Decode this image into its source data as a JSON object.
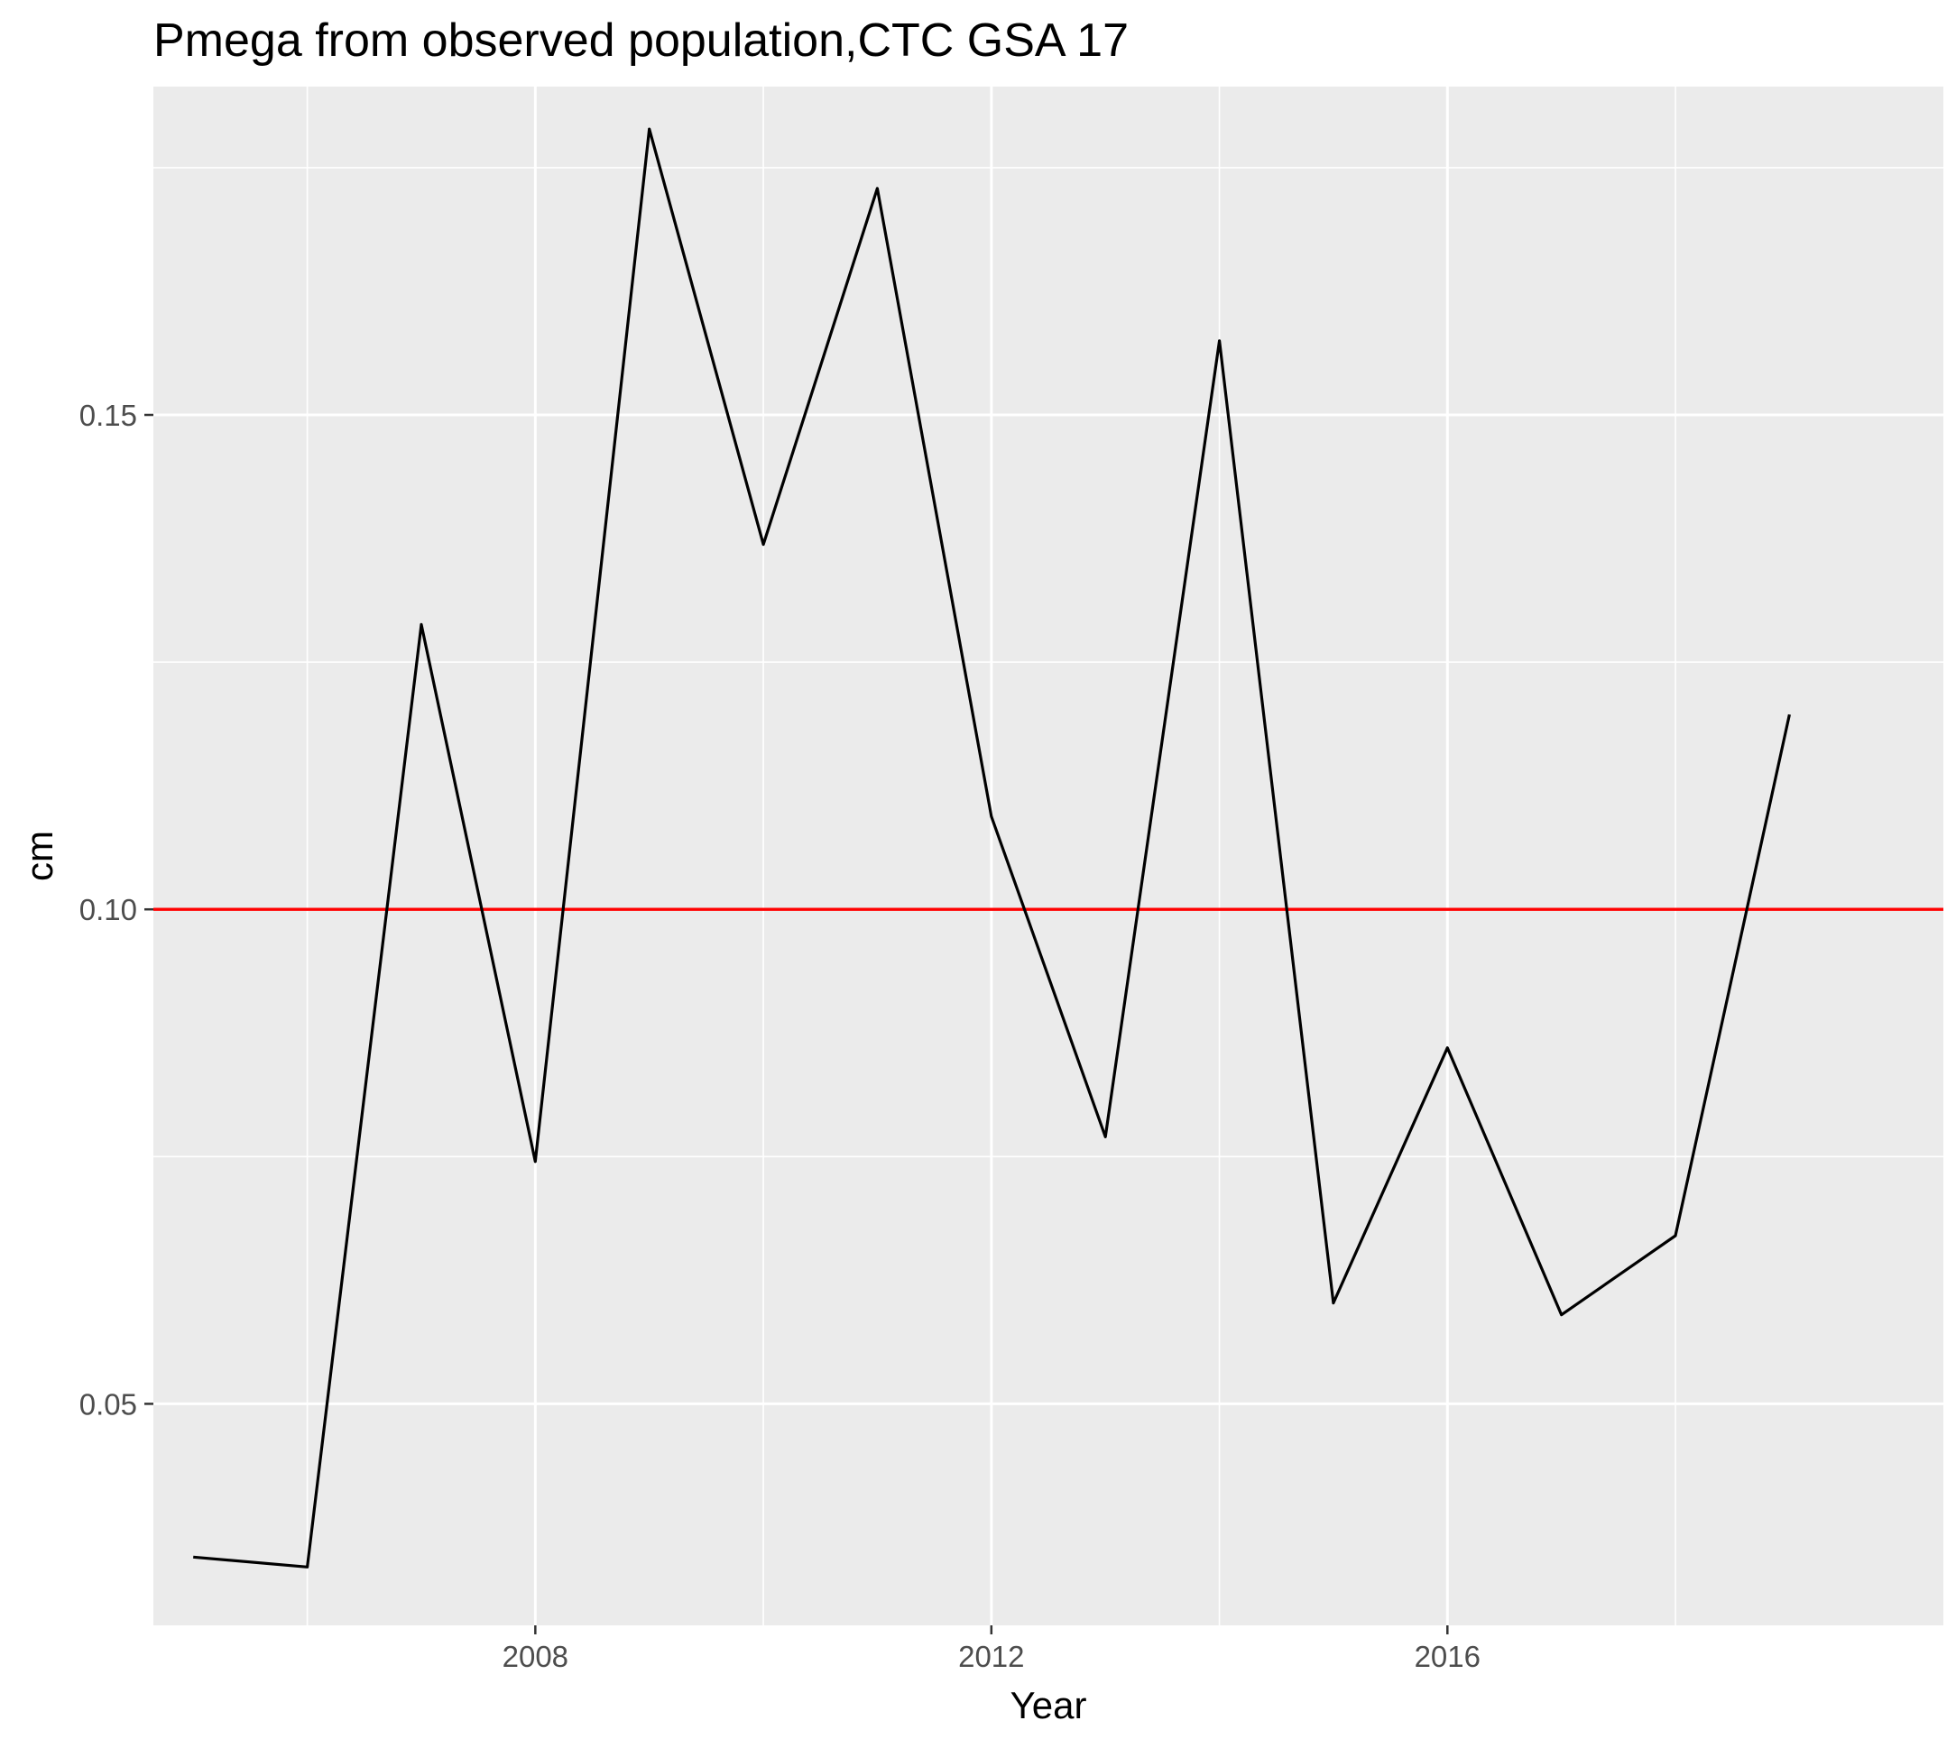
{
  "chart_data": {
    "type": "line",
    "title": "Pmega from observed population,CTC GSA 17",
    "xlabel": "Year",
    "ylabel": "cm",
    "xlim": [
      2004.65,
      2020.35
    ],
    "ylim": [
      0.0276,
      0.1832
    ],
    "x_ticks": [
      2008,
      2012,
      2016
    ],
    "x_tick_labels": [
      "2008",
      "2012",
      "2016"
    ],
    "x_minor_ticks": [
      2006,
      2010,
      2014,
      2018
    ],
    "y_ticks": [
      0.05,
      0.1,
      0.15
    ],
    "y_tick_labels": [
      "0.05",
      "0.10",
      "0.15"
    ],
    "y_minor_ticks": [
      0.075,
      0.125,
      0.175
    ],
    "grid": true,
    "legend": "none",
    "series": [
      {
        "x": [
          2005,
          2006,
          2007,
          2008,
          2009,
          2010,
          2011,
          2012,
          2013,
          2014,
          2015,
          2016,
          2017,
          2018,
          2019
        ],
        "values": [
          0.0345,
          0.0335,
          0.1288,
          0.0745,
          0.1789,
          0.1369,
          0.1729,
          0.1094,
          0.077,
          0.1575,
          0.0602,
          0.086,
          0.059,
          0.067,
          0.1197
        ]
      }
    ],
    "reference_line": {
      "y": 0.1
    },
    "colors": {
      "series_line": "#000000",
      "reference_line": "#ff0000",
      "panel_background": "#ebebeb",
      "grid_line": "#ffffff",
      "tick_label": "#4d4d4d",
      "tick_mark": "#333333"
    }
  }
}
